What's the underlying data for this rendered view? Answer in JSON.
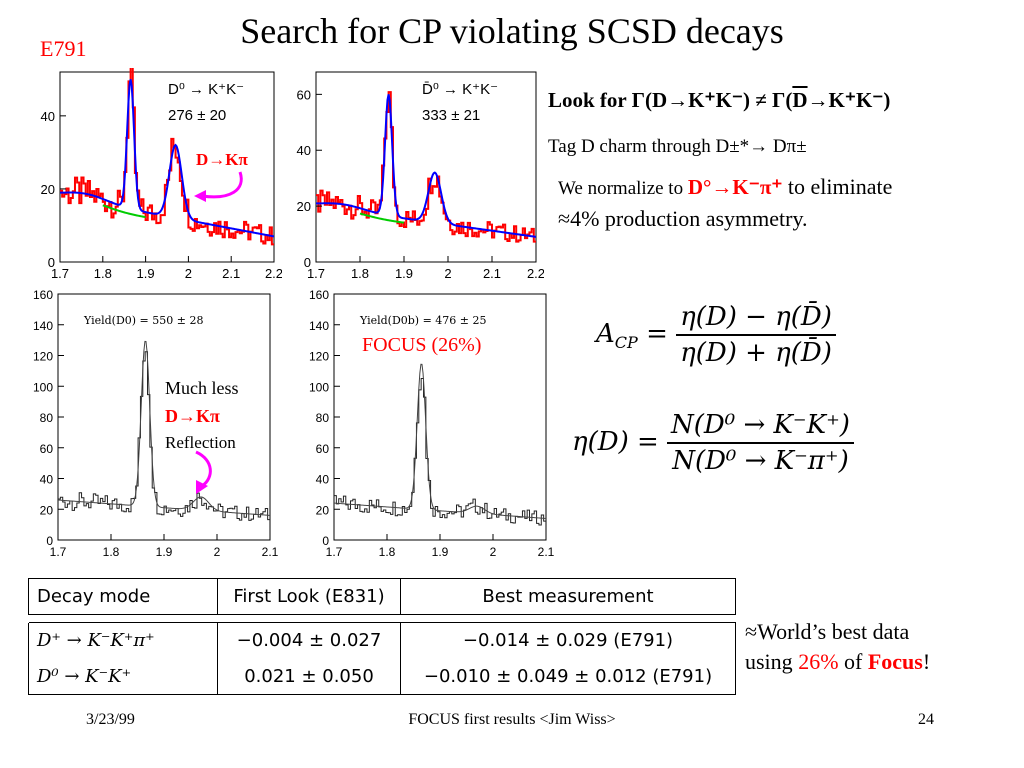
{
  "slide": {
    "title": "Search for CP violating SCSD decays",
    "experiment_tag": "E791",
    "look_for": {
      "prefix": "Look for ",
      "lhs": "Γ(D→K⁺K⁻)",
      "neq": " ≠ ",
      "rhs_pre": "Γ(",
      "rhs_bar": "D",
      "rhs_post": "→K⁺K⁻)"
    },
    "tag_text": "Tag D charm through D±*→ Dπ±",
    "normalize": {
      "text": "We normalize to ",
      "mode": "D°→K⁻π⁺",
      "rest": "  to eliminate"
    },
    "normalize_line2": "≈4% production asymmetry.",
    "focus_label": "FOCUS (26%)",
    "much_less": {
      "line1": "Much less",
      "line2": "D→Kπ",
      "line3": "Reflection"
    },
    "dk_label": "D→Kπ",
    "world": {
      "line1": "≈World’s best data",
      "using": "using ",
      "pct": "26%",
      "of": " of ",
      "focus": "Focus",
      "bang": "!"
    },
    "footer": {
      "date": "3/23/99",
      "center": "FOCUS first results <Jim Wiss>",
      "page": "24"
    }
  },
  "equations": {
    "acp_lhs": "A",
    "acp_sub": "CP",
    "acp_num": "η(D) − η(D̄)",
    "acp_den": "η(D) + η(D̄)",
    "eta_lhs": "η(D) =",
    "eta_num": "N(D⁰ → K⁻K⁺)",
    "eta_den": "N(D⁰ → K⁻π⁺)"
  },
  "results_table": {
    "headers": [
      "Decay mode",
      "First Look (E831)",
      "Best measurement"
    ],
    "rows": [
      [
        "D⁺ → K⁻K⁺π⁺",
        "−0.004 ± 0.027",
        "−0.014 ± 0.029 (E791)"
      ],
      [
        "D⁰ → K⁻K⁺",
        "0.021 ± 0.050",
        "−0.010 ± 0.049 ± 0.012 (E791)"
      ]
    ]
  },
  "chart_data": [
    {
      "type": "histogram",
      "panel": "E791 D0",
      "label_line1": "D⁰ → K⁺K⁻",
      "label_line2": "276 ± 20",
      "x_ticks": [
        "1.7",
        "1.8",
        "1.9",
        "2",
        "2.1",
        "2.2"
      ],
      "y_ticks": [
        "0",
        "20",
        "40"
      ],
      "xlim": [
        1.7,
        2.2
      ],
      "ylim": [
        0,
        52
      ],
      "peaks": [
        {
          "x": 1.865,
          "height": 50
        },
        {
          "x": 1.97,
          "height": 32
        }
      ],
      "colors": {
        "hist": "#ff0000",
        "fit": "#0000ff",
        "background": "#00aa00"
      }
    },
    {
      "type": "histogram",
      "panel": "E791 D0bar",
      "label_line1": "D̄⁰ → K⁺K⁻",
      "label_line2": "333 ± 21",
      "x_ticks": [
        "1.7",
        "1.8",
        "1.9",
        "2",
        "2.1",
        "2.2"
      ],
      "y_ticks": [
        "0",
        "20",
        "40",
        "60"
      ],
      "xlim": [
        1.7,
        2.2
      ],
      "ylim": [
        0,
        68
      ],
      "peaks": [
        {
          "x": 1.865,
          "height": 60
        },
        {
          "x": 1.97,
          "height": 32
        }
      ],
      "colors": {
        "hist": "#ff0000",
        "fit": "#0000ff",
        "background": "#00aa00"
      }
    },
    {
      "type": "histogram",
      "panel": "FOCUS D0",
      "label": "Yield(D0)  = 550 ± 28",
      "x_ticks": [
        "1.7",
        "1.8",
        "1.9",
        "2",
        "2.1"
      ],
      "y_ticks": [
        "0",
        "20",
        "40",
        "60",
        "80",
        "100",
        "120",
        "140",
        "160"
      ],
      "xlim": [
        1.7,
        2.1
      ],
      "ylim": [
        0,
        160
      ],
      "peaks": [
        {
          "x": 1.865,
          "height": 130
        },
        {
          "x": 1.97,
          "height": 28
        }
      ]
    },
    {
      "type": "histogram",
      "panel": "FOCUS D0bar",
      "label": "Yield(D0b) = 476 ± 25",
      "x_ticks": [
        "1.7",
        "1.8",
        "1.9",
        "2",
        "2.1"
      ],
      "y_ticks": [
        "0",
        "20",
        "40",
        "60",
        "80",
        "100",
        "120",
        "140",
        "160"
      ],
      "xlim": [
        1.7,
        2.1
      ],
      "ylim": [
        0,
        160
      ],
      "peaks": [
        {
          "x": 1.865,
          "height": 115
        },
        {
          "x": 1.97,
          "height": 22
        }
      ]
    }
  ]
}
